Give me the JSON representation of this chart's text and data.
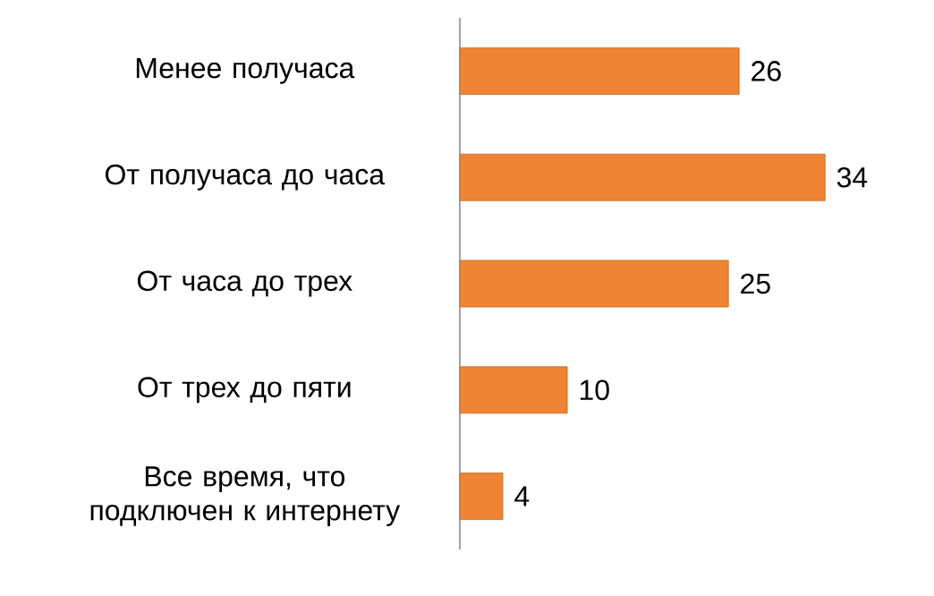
{
  "chart_data": {
    "type": "bar",
    "orientation": "horizontal",
    "categories": [
      "Менее получаса",
      "От получаса до часа",
      "От часа до трех",
      "От трех до пяти",
      "Все время, что подключен к интернету"
    ],
    "values": [
      26,
      34,
      25,
      10,
      4
    ],
    "color": "#ee8434",
    "data_labels": true
  }
}
